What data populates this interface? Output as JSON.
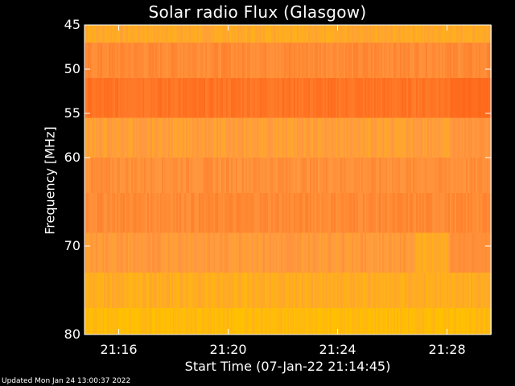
{
  "chart_data": {
    "type": "heatmap",
    "title": "Solar radio Flux (Glasgow)",
    "xlabel": "Start Time (07-Jan-22 21:14:45)",
    "ylabel": "Frequency [MHz]",
    "x_ticks": [
      "21:16",
      "21:20",
      "21:24",
      "21:28"
    ],
    "x_tick_minutes": [
      16,
      20,
      24,
      28
    ],
    "xlim_minutes": [
      14.75,
      29.6
    ],
    "y_ticks": [
      45,
      50,
      55,
      60,
      70,
      80
    ],
    "ylim": [
      45,
      80
    ],
    "frequency_bands_mhz": [
      {
        "from": 45,
        "to": 47,
        "level": 0.25
      },
      {
        "from": 47,
        "to": 51,
        "level": 0.55
      },
      {
        "from": 51,
        "to": 55.5,
        "level": 0.75
      },
      {
        "from": 55.5,
        "to": 60,
        "level": 0.35
      },
      {
        "from": 60,
        "to": 64,
        "level": 0.5
      },
      {
        "from": 64,
        "to": 68.5,
        "level": 0.55
      },
      {
        "from": 68.5,
        "to": 73,
        "level": 0.4
      },
      {
        "from": 73,
        "to": 77,
        "level": 0.2
      },
      {
        "from": 77,
        "to": 80,
        "level": 0.05
      }
    ],
    "colors": {
      "low": "#ffc000",
      "mid": "#ff9a40",
      "high": "#ff5a10",
      "background": "#000000",
      "axes": "#ffffff"
    }
  },
  "footer": "Updated Mon Jan 24 13:00:37 2022"
}
